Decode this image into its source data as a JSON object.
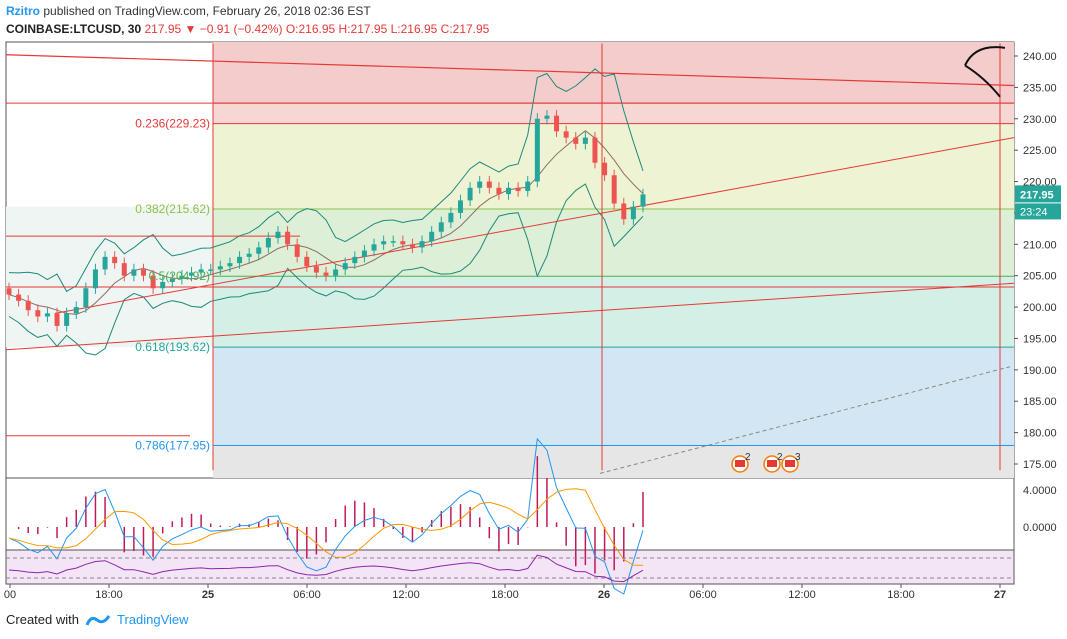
{
  "header": {
    "user": "Rzitro",
    "published_text": "published on TradingView.com, February 26, 2018 02:36 EST",
    "symbol": "COINBASE:LTCUSD, 30",
    "last": "217.95",
    "change_arrow": "▼",
    "change": "−0.91 (−0.42%)",
    "open": "O:216.95",
    "high": "H:217.95",
    "low": "L:216.95",
    "close": "C:217.95"
  },
  "footer": {
    "created_with": "Created with",
    "brand": "TradingView"
  },
  "chart_data": {
    "type": "candlestick",
    "price_axis_ticks": [
      "240.00",
      "235.00",
      "230.00",
      "225.00",
      "220.00",
      "215.00",
      "210.00",
      "205.00",
      "200.00",
      "195.00",
      "190.00",
      "185.00",
      "180.00",
      "175.00"
    ],
    "ylim": [
      173,
      242
    ],
    "time_axis_ticks": [
      "00",
      "18:00",
      "25",
      "06:00",
      "12:00",
      "18:00",
      "26",
      "06:00",
      "12:00",
      "18:00",
      "27"
    ],
    "current_price_label": "217.95",
    "countdown_label": "23:24",
    "fib_levels": [
      {
        "label": "0.236(229.23)",
        "price": 229.23,
        "color": "#e53935"
      },
      {
        "label": "0.382(215.62)",
        "price": 215.62,
        "color": "#8bc34a"
      },
      {
        "label": "0.5(204.92)",
        "price": 204.92,
        "color": "#4caf50"
      },
      {
        "label": "0.618(193.62)",
        "price": 193.62,
        "color": "#26a69a"
      },
      {
        "label": "0.786(177.95)",
        "price": 177.95,
        "color": "#2196f3"
      }
    ],
    "macd_ticks": [
      "4.0000",
      "0.0000"
    ],
    "event_badges": [
      "2",
      "2",
      "3"
    ],
    "colors": {
      "up": "#26a69a",
      "down": "#ef5350",
      "bb": "#1b8a7a",
      "ma": "#8d6e63",
      "macd": "#2196f3",
      "signal": "#ff9800",
      "hist_pos": "#c2185b",
      "trend": "#e53935"
    }
  }
}
